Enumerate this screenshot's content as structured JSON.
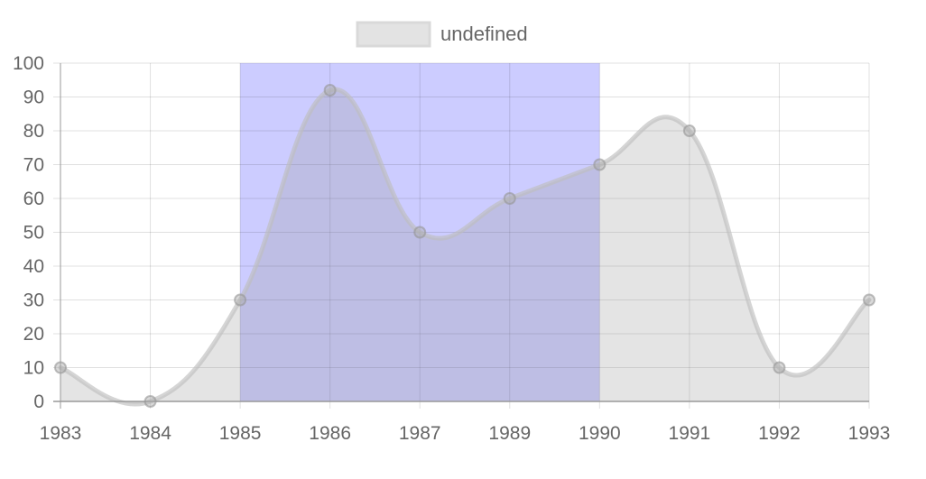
{
  "chart_data": {
    "type": "area",
    "categories": [
      "1983",
      "1984",
      "1985",
      "1986",
      "1987",
      "1989",
      "1990",
      "1991",
      "1992",
      "1993"
    ],
    "series": [
      {
        "name": "undefined",
        "values": [
          10,
          0,
          30,
          92,
          50,
          60,
          70,
          80,
          10,
          30
        ],
        "color": "#d9d9d9",
        "fill": "#e3e3e3"
      }
    ],
    "ylim": [
      0,
      100
    ],
    "y_ticks": [
      "0",
      "10",
      "20",
      "30",
      "40",
      "50",
      "60",
      "70",
      "80",
      "90",
      "100"
    ],
    "grid": true,
    "legend": {
      "position": "top",
      "label": "undefined"
    },
    "highlight_band": {
      "from": "1985",
      "to": "1990",
      "color": "#ccccff"
    },
    "title": "",
    "xlabel": "",
    "ylabel": ""
  }
}
